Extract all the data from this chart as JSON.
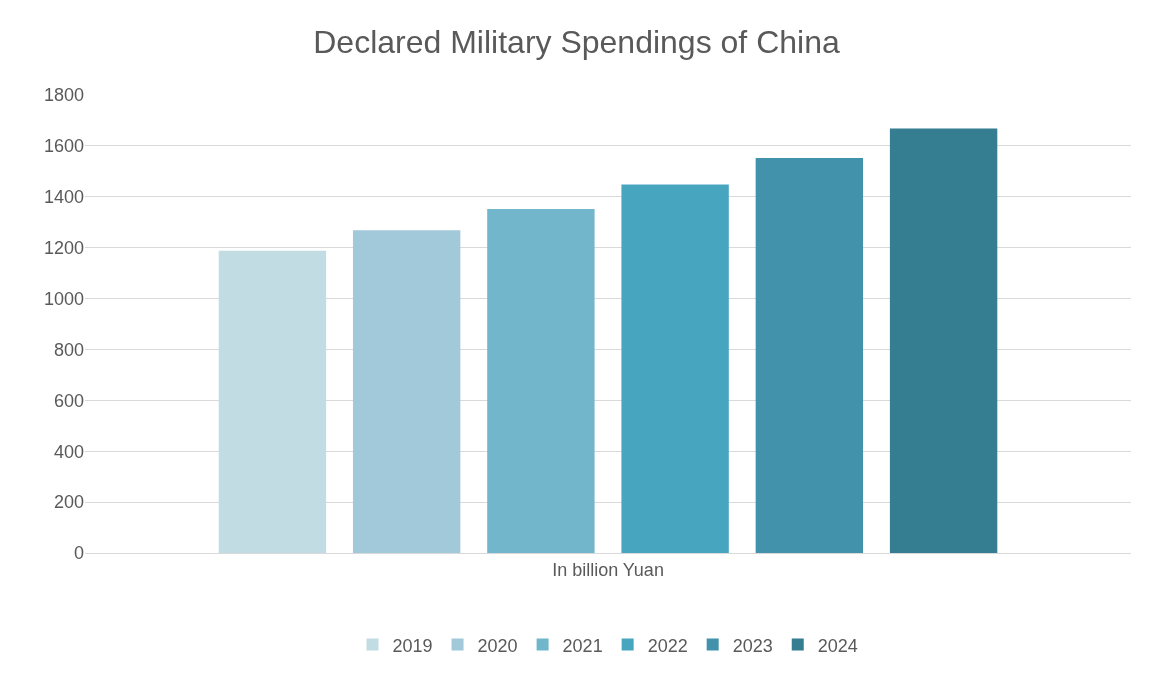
{
  "chart_data": {
    "type": "bar",
    "title": "Declared Military Spendings of China",
    "categories": [
      "In billion Yuan"
    ],
    "series": [
      {
        "name": "2019",
        "color": "#c2dce4",
        "values": [
          1188
        ]
      },
      {
        "name": "2020",
        "color": "#a2c9d9",
        "values": [
          1268
        ]
      },
      {
        "name": "2021",
        "color": "#72b6cc",
        "values": [
          1352
        ]
      },
      {
        "name": "2022",
        "color": "#48a5bf",
        "values": [
          1448
        ]
      },
      {
        "name": "2023",
        "color": "#4192aa",
        "values": [
          1552
        ]
      },
      {
        "name": "2024",
        "color": "#357d91",
        "values": [
          1668
        ]
      }
    ],
    "ylim": [
      0,
      1800
    ],
    "yticks": [
      0,
      200,
      400,
      600,
      800,
      1000,
      1200,
      1400,
      1600,
      1800
    ],
    "grid": "y",
    "legend": "bottom"
  }
}
